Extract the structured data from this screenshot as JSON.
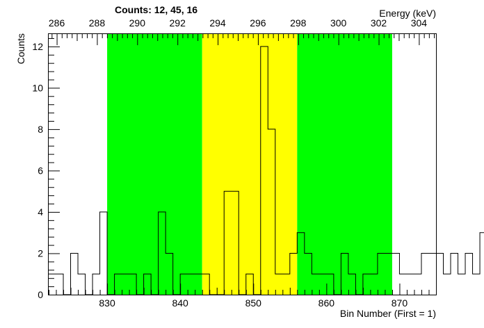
{
  "chart_data": {
    "type": "histogram",
    "title": "Counts:   12,   45,   16",
    "xlabel": "Bin Number (First = 1)",
    "ylabel": "Counts",
    "top_axis_label": "Energy (keV)",
    "xlim": [
      822,
      875
    ],
    "ylim": [
      0,
      12.6
    ],
    "x_ticks": [
      830,
      840,
      850,
      860,
      870
    ],
    "y_ticks": [
      0,
      2,
      4,
      6,
      8,
      10,
      12
    ],
    "top_ticks": [
      286,
      288,
      290,
      292,
      294,
      296,
      298,
      300,
      302,
      304
    ],
    "top_axis_mapping": {
      "bin_a": 822,
      "energy_a": 285.6,
      "bin_b": 875,
      "energy_b": 304.85
    },
    "bin_edges_start": 822,
    "bin_width": 1,
    "counts": [
      1,
      1,
      0,
      2,
      1,
      0,
      1,
      4,
      0,
      1,
      1,
      1,
      0,
      1,
      0,
      4,
      2,
      0,
      1,
      1,
      1,
      1,
      0,
      0,
      5,
      5,
      0,
      1,
      0,
      12,
      8,
      1,
      1,
      2,
      3,
      2,
      1,
      1,
      1,
      0,
      2,
      1,
      0,
      1,
      1,
      2,
      2,
      2,
      1,
      1,
      1,
      2,
      2,
      2,
      1,
      2,
      1,
      2,
      1,
      3,
      0
    ],
    "regions": [
      {
        "name": "background-left",
        "from": 830,
        "to": 843,
        "color": "#00ff00"
      },
      {
        "name": "peak",
        "from": 843,
        "to": 856,
        "color": "#ffff00"
      },
      {
        "name": "background-right",
        "from": 856,
        "to": 869,
        "color": "#00ff00"
      }
    ],
    "line_color": "#000000",
    "grid": false
  }
}
